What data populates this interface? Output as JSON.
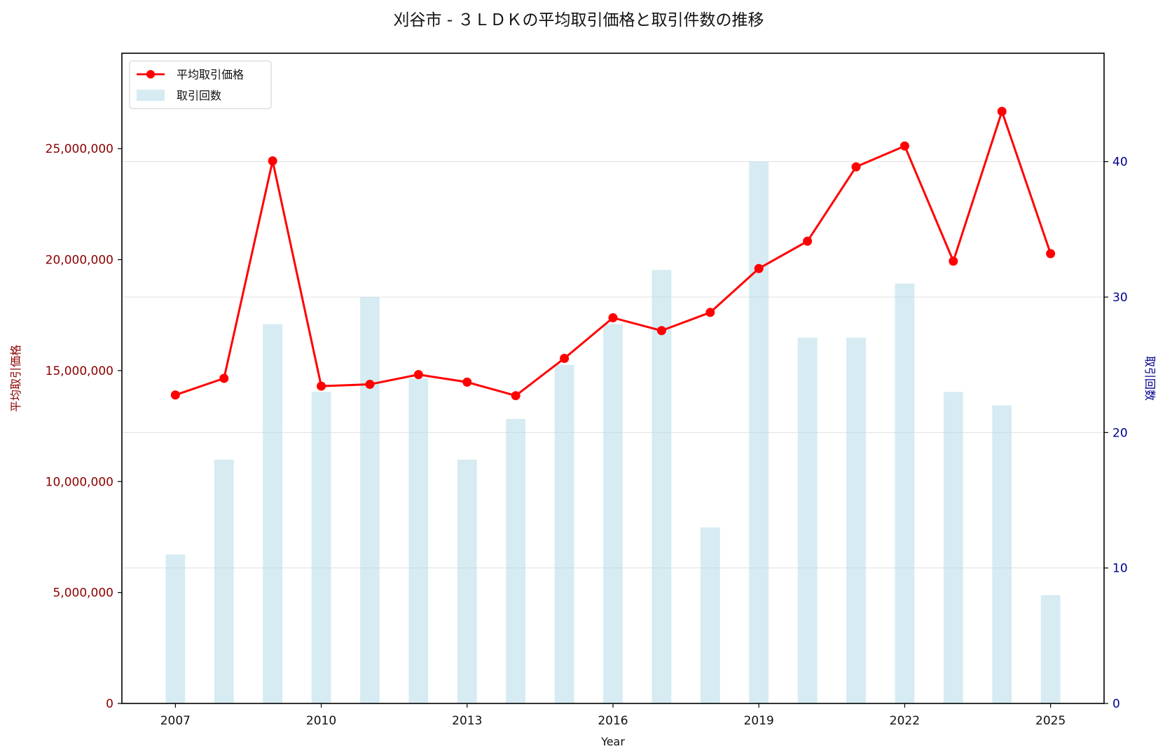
{
  "chart_data": {
    "type": "bar+line",
    "title": "刈谷市 - ３ＬＤＫの平均取引価格と取引件数の推移",
    "xlabel": "Year",
    "ylabel_left": "平均取引価格",
    "ylabel_right": "取引回数",
    "x": [
      2007,
      2008,
      2009,
      2010,
      2011,
      2012,
      2013,
      2014,
      2015,
      2016,
      2017,
      2018,
      2019,
      2020,
      2021,
      2022,
      2023,
      2024,
      2025
    ],
    "x_ticks": [
      "2007",
      "2010",
      "2013",
      "2016",
      "2019",
      "2022",
      "2025"
    ],
    "xlim": [
      2005.9,
      2026.1
    ],
    "series": [
      {
        "name": "平均取引価格",
        "axis": "left",
        "kind": "line",
        "color": "#ff0000",
        "values": [
          13900000,
          14650000,
          24450000,
          14300000,
          14380000,
          14820000,
          14480000,
          13870000,
          15550000,
          17380000,
          16800000,
          17620000,
          19600000,
          20830000,
          24180000,
          25120000,
          19930000,
          26680000,
          20270000
        ]
      },
      {
        "name": "取引回数",
        "axis": "right",
        "kind": "bar",
        "color": "#add8e6",
        "values": [
          11,
          18,
          28,
          23,
          30,
          24,
          18,
          21,
          25,
          28,
          32,
          13,
          40,
          27,
          27,
          31,
          23,
          22,
          8
        ]
      }
    ],
    "y_left": {
      "lim": [
        0,
        29300000
      ],
      "ticks": [
        0,
        5000000,
        10000000,
        15000000,
        20000000,
        25000000
      ],
      "tick_labels": [
        "0",
        "5,000,000",
        "10,000,000",
        "15,000,000",
        "20,000,000",
        "25,000,000"
      ],
      "color": "#8b0000"
    },
    "y_right": {
      "lim": [
        0,
        48
      ],
      "ticks": [
        0,
        10,
        20,
        30,
        40
      ],
      "tick_labels": [
        "0",
        "10",
        "20",
        "30",
        "40"
      ],
      "color": "#00008b"
    },
    "grid": true,
    "legend_position": "top-left"
  }
}
